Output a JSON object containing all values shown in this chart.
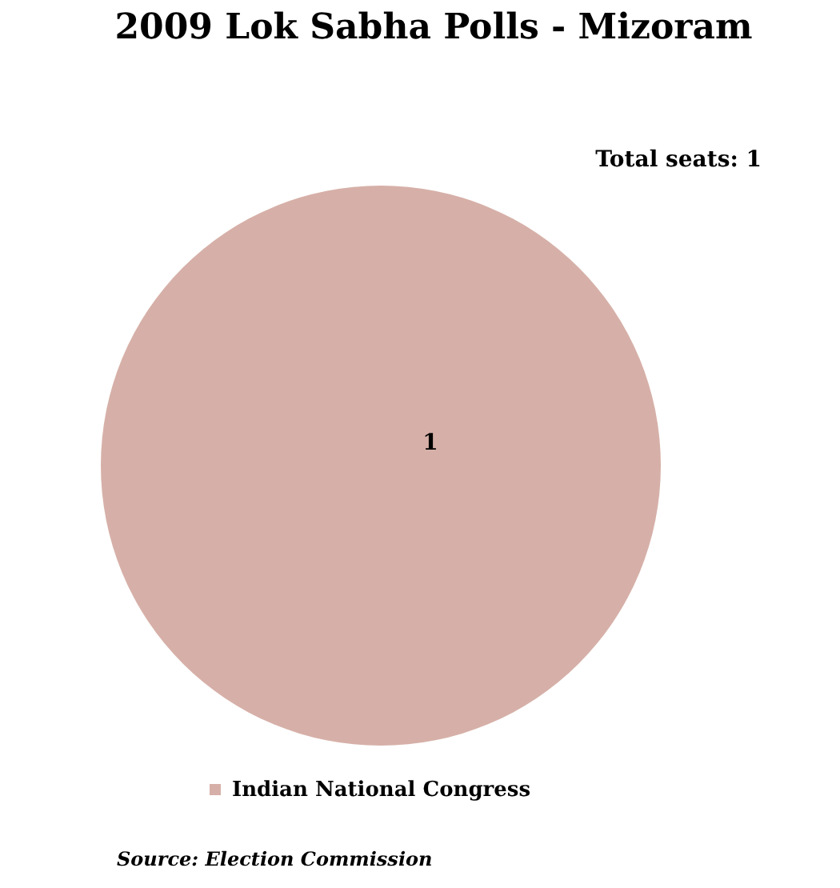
{
  "chart_data": {
    "type": "pie",
    "title": "2009 Lok Sabha Polls - Mizoram",
    "categories": [
      "Indian National Congress"
    ],
    "values": [
      1
    ],
    "colors": [
      "#d6b0a8"
    ],
    "data_labels": true,
    "legend": "bottom",
    "annotations": [
      "Total seats: 1",
      "Source: Election Commission"
    ]
  }
}
